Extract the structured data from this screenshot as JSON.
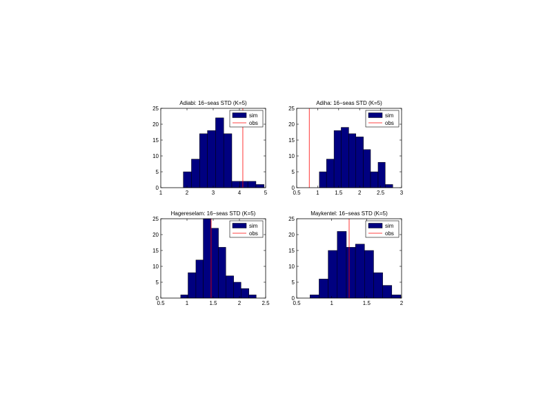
{
  "figure": {
    "background": "#ffffff"
  },
  "colors": {
    "bar_fill": "#000080",
    "bar_edge": "#000000",
    "obs_line": "#ff0000",
    "axis": "#000000"
  },
  "chart_data": [
    {
      "type": "bar",
      "title": "Adiabi: 16−seas STD (K=5)",
      "xlabel": "",
      "ylabel": "",
      "xlim": [
        1,
        5
      ],
      "ylim": [
        0,
        25
      ],
      "xticks": [
        "1",
        "2",
        "3",
        "4",
        "5"
      ],
      "yticks": [
        "0",
        "5",
        "10",
        "15",
        "20",
        "25"
      ],
      "bin_edges": [
        1.86,
        2.17,
        2.48,
        2.78,
        3.09,
        3.4,
        3.71,
        4.01,
        4.32,
        4.63,
        4.94
      ],
      "values": [
        5,
        9,
        17,
        18,
        22,
        17,
        2,
        2,
        2,
        1
      ],
      "obs": 4.13,
      "legend": {
        "entries": [
          "sim",
          "obs"
        ],
        "placement": "top-right"
      }
    },
    {
      "type": "bar",
      "title": "Adiha: 16−seas STD (K=5)",
      "xlabel": "",
      "ylabel": "",
      "xlim": [
        0.5,
        3
      ],
      "ylim": [
        0,
        25
      ],
      "xticks": [
        "0.5",
        "1",
        "1.5",
        "2",
        "2.5",
        "3"
      ],
      "yticks": [
        "0",
        "5",
        "10",
        "15",
        "20",
        "25"
      ],
      "bin_edges": [
        1.04,
        1.21,
        1.39,
        1.56,
        1.74,
        1.91,
        2.09,
        2.26,
        2.44,
        2.61,
        2.79
      ],
      "values": [
        5,
        9,
        18,
        19,
        17,
        16,
        12,
        5,
        8,
        1
      ],
      "obs": 0.8,
      "legend": {
        "entries": [
          "sim",
          "obs"
        ],
        "placement": "top-right"
      }
    },
    {
      "type": "bar",
      "title": "Hagereselam: 16−seas STD (K=5)",
      "xlabel": "",
      "ylabel": "",
      "xlim": [
        0.5,
        2.5
      ],
      "ylim": [
        0,
        25
      ],
      "xticks": [
        "0.5",
        "1",
        "1.5",
        "2",
        "2.5"
      ],
      "yticks": [
        "0",
        "5",
        "10",
        "15",
        "20",
        "25"
      ],
      "bin_edges": [
        0.88,
        1.02,
        1.17,
        1.31,
        1.46,
        1.6,
        1.74,
        1.89,
        2.03,
        2.18,
        2.32
      ],
      "values": [
        1,
        8,
        12,
        25,
        22,
        16,
        7,
        5,
        3,
        1
      ],
      "obs": 1.46,
      "legend": {
        "entries": [
          "sim",
          "obs"
        ],
        "placement": "top-right"
      }
    },
    {
      "type": "bar",
      "title": "Maykentel: 16−seas STD (K=5)",
      "xlabel": "",
      "ylabel": "",
      "xlim": [
        0.5,
        2
      ],
      "ylim": [
        0,
        25
      ],
      "xticks": [
        "0.5",
        "1",
        "1.5",
        "2"
      ],
      "yticks": [
        "0",
        "5",
        "10",
        "15",
        "20",
        "25"
      ],
      "bin_edges": [
        0.69,
        0.82,
        0.95,
        1.08,
        1.21,
        1.34,
        1.47,
        1.6,
        1.73,
        1.86,
        1.99
      ],
      "values": [
        1,
        6,
        15,
        21,
        16,
        17,
        15,
        8,
        4,
        1
      ],
      "obs": 1.25,
      "legend": {
        "entries": [
          "sim",
          "obs"
        ],
        "placement": "top-right"
      }
    }
  ]
}
